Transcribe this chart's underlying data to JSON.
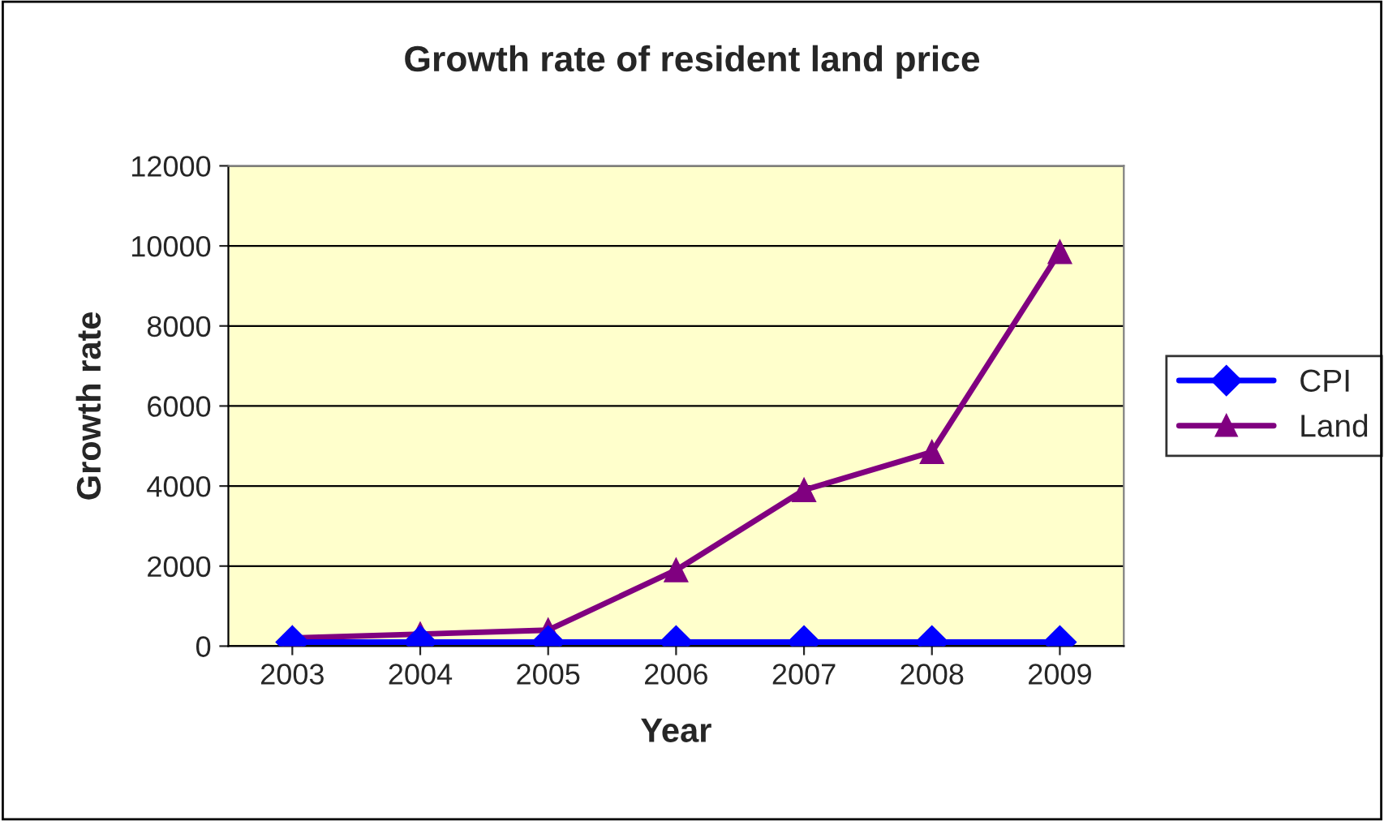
{
  "chart_data": {
    "type": "line",
    "title": "Growth rate of resident land price",
    "xlabel": "Year",
    "ylabel": "Growth rate",
    "categories": [
      "2003",
      "2004",
      "2005",
      "2006",
      "2007",
      "2008",
      "2009"
    ],
    "series": [
      {
        "name": "CPI",
        "color": "#0000ff",
        "marker": "diamond",
        "values": [
          100,
          100,
          100,
          100,
          100,
          100,
          100
        ]
      },
      {
        "name": "Land",
        "color": "#800080",
        "marker": "triangle",
        "values": [
          200,
          300,
          400,
          1900,
          3900,
          4850,
          9850
        ]
      }
    ],
    "ylim": [
      0,
      12000
    ],
    "yticks": [
      0,
      2000,
      4000,
      6000,
      8000,
      10000,
      12000
    ],
    "grid": "y",
    "legend": "right",
    "line_style": "solid"
  }
}
